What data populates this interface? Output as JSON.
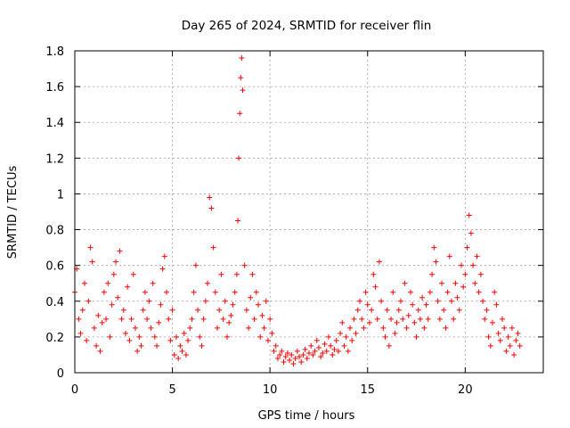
{
  "chart_data": {
    "type": "scatter",
    "title": "Day 265 of 2024, SRMTID for receiver flin",
    "xlabel": "GPS time / hours",
    "ylabel": "SRMTID / TECUs",
    "xlim": [
      0,
      24
    ],
    "ylim": [
      0,
      1.8
    ],
    "xticks": [
      0,
      5,
      10,
      15,
      20
    ],
    "yticks": [
      0,
      0.2,
      0.4,
      0.6,
      0.8,
      1,
      1.2,
      1.4,
      1.6,
      1.8
    ],
    "xtick_labels": [
      "0",
      "5",
      "10",
      "15",
      "20"
    ],
    "ytick_labels": [
      "0",
      "0.2",
      "0.4",
      "0.6",
      "0.8",
      "1",
      "1.2",
      "1.4",
      "1.6",
      "1.8"
    ],
    "grid": true,
    "marker": "+",
    "series": [
      {
        "name": "SRMTID",
        "color": "#ff0000",
        "x": [
          0.0,
          0.1,
          0.2,
          0.3,
          0.4,
          0.5,
          0.6,
          0.7,
          0.8,
          0.9,
          1.0,
          1.1,
          1.2,
          1.3,
          1.4,
          1.5,
          1.6,
          1.7,
          1.8,
          1.9,
          2.0,
          2.1,
          2.2,
          2.3,
          2.4,
          2.5,
          2.6,
          2.7,
          2.8,
          2.9,
          3.0,
          3.1,
          3.2,
          3.3,
          3.4,
          3.5,
          3.6,
          3.7,
          3.8,
          3.9,
          4.0,
          4.1,
          4.2,
          4.3,
          4.4,
          4.5,
          4.6,
          4.7,
          4.8,
          4.9,
          5.0,
          5.1,
          5.2,
          5.3,
          5.4,
          5.5,
          5.6,
          5.7,
          5.8,
          5.9,
          6.0,
          6.1,
          6.2,
          6.3,
          6.4,
          6.5,
          6.6,
          6.7,
          6.8,
          6.9,
          7.0,
          7.1,
          7.2,
          7.3,
          7.4,
          7.5,
          7.6,
          7.7,
          7.8,
          7.9,
          8.0,
          8.1,
          8.2,
          8.3,
          8.35,
          8.4,
          8.45,
          8.5,
          8.55,
          8.6,
          8.7,
          8.8,
          8.9,
          9.0,
          9.1,
          9.2,
          9.3,
          9.4,
          9.5,
          9.6,
          9.7,
          9.8,
          9.9,
          10.0,
          10.1,
          10.2,
          10.3,
          10.4,
          10.5,
          10.6,
          10.7,
          10.8,
          10.9,
          11.0,
          11.1,
          11.2,
          11.3,
          11.4,
          11.5,
          11.6,
          11.7,
          11.8,
          11.9,
          12.0,
          12.1,
          12.2,
          12.3,
          12.4,
          12.5,
          12.6,
          12.7,
          12.8,
          12.9,
          13.0,
          13.1,
          13.2,
          13.3,
          13.4,
          13.5,
          13.6,
          13.7,
          13.8,
          13.9,
          14.0,
          14.1,
          14.2,
          14.3,
          14.4,
          14.5,
          14.6,
          14.7,
          14.8,
          14.9,
          15.0,
          15.1,
          15.2,
          15.3,
          15.4,
          15.5,
          15.6,
          15.7,
          15.8,
          15.9,
          16.0,
          16.1,
          16.2,
          16.3,
          16.4,
          16.5,
          16.6,
          16.7,
          16.8,
          16.9,
          17.0,
          17.1,
          17.2,
          17.3,
          17.4,
          17.5,
          17.6,
          17.7,
          17.8,
          17.9,
          18.0,
          18.1,
          18.2,
          18.3,
          18.4,
          18.5,
          18.6,
          18.7,
          18.8,
          18.9,
          19.0,
          19.1,
          19.2,
          19.3,
          19.4,
          19.5,
          19.6,
          19.7,
          19.8,
          19.9,
          20.0,
          20.1,
          20.2,
          20.3,
          20.4,
          20.5,
          20.6,
          20.7,
          20.8,
          20.9,
          21.0,
          21.1,
          21.2,
          21.3,
          21.4,
          21.5,
          21.6,
          21.7,
          21.8,
          21.9,
          22.0,
          22.1,
          22.2,
          22.3,
          22.4,
          22.5,
          22.6,
          22.7,
          22.8
        ],
        "y": [
          0.45,
          0.58,
          0.3,
          0.22,
          0.35,
          0.5,
          0.18,
          0.4,
          0.7,
          0.62,
          0.25,
          0.15,
          0.32,
          0.12,
          0.28,
          0.45,
          0.3,
          0.5,
          0.2,
          0.38,
          0.55,
          0.62,
          0.42,
          0.68,
          0.3,
          0.35,
          0.22,
          0.48,
          0.18,
          0.3,
          0.55,
          0.25,
          0.12,
          0.2,
          0.15,
          0.35,
          0.45,
          0.3,
          0.4,
          0.25,
          0.5,
          0.2,
          0.15,
          0.28,
          0.38,
          0.58,
          0.65,
          0.45,
          0.3,
          0.18,
          0.35,
          0.1,
          0.2,
          0.08,
          0.15,
          0.12,
          0.22,
          0.1,
          0.18,
          0.25,
          0.3,
          0.45,
          0.6,
          0.35,
          0.2,
          0.15,
          0.3,
          0.4,
          0.5,
          0.98,
          0.92,
          0.7,
          0.45,
          0.25,
          0.35,
          0.55,
          0.3,
          0.4,
          0.2,
          0.28,
          0.32,
          0.38,
          0.45,
          0.55,
          0.85,
          1.2,
          1.45,
          1.65,
          1.76,
          1.58,
          0.6,
          0.35,
          0.25,
          0.42,
          0.55,
          0.3,
          0.45,
          0.38,
          0.2,
          0.32,
          0.25,
          0.4,
          0.18,
          0.3,
          0.22,
          0.12,
          0.15,
          0.08,
          0.1,
          0.12,
          0.06,
          0.09,
          0.11,
          0.07,
          0.1,
          0.05,
          0.08,
          0.12,
          0.09,
          0.06,
          0.1,
          0.13,
          0.08,
          0.11,
          0.15,
          0.1,
          0.12,
          0.18,
          0.14,
          0.09,
          0.11,
          0.16,
          0.12,
          0.2,
          0.15,
          0.1,
          0.13,
          0.18,
          0.12,
          0.22,
          0.28,
          0.15,
          0.2,
          0.12,
          0.25,
          0.18,
          0.3,
          0.22,
          0.35,
          0.4,
          0.3,
          0.25,
          0.45,
          0.38,
          0.28,
          0.35,
          0.55,
          0.48,
          0.3,
          0.62,
          0.4,
          0.25,
          0.2,
          0.35,
          0.15,
          0.3,
          0.45,
          0.22,
          0.28,
          0.35,
          0.4,
          0.3,
          0.5,
          0.25,
          0.32,
          0.45,
          0.38,
          0.28,
          0.2,
          0.35,
          0.3,
          0.42,
          0.25,
          0.38,
          0.3,
          0.45,
          0.55,
          0.7,
          0.62,
          0.4,
          0.3,
          0.5,
          0.35,
          0.25,
          0.45,
          0.65,
          0.4,
          0.3,
          0.5,
          0.42,
          0.35,
          0.6,
          0.48,
          0.55,
          0.7,
          0.88,
          0.78,
          0.6,
          0.5,
          0.65,
          0.45,
          0.55,
          0.4,
          0.3,
          0.35,
          0.2,
          0.15,
          0.28,
          0.45,
          0.38,
          0.22,
          0.18,
          0.3,
          0.25,
          0.12,
          0.2,
          0.15,
          0.25,
          0.1,
          0.18,
          0.22,
          0.15
        ]
      }
    ]
  }
}
